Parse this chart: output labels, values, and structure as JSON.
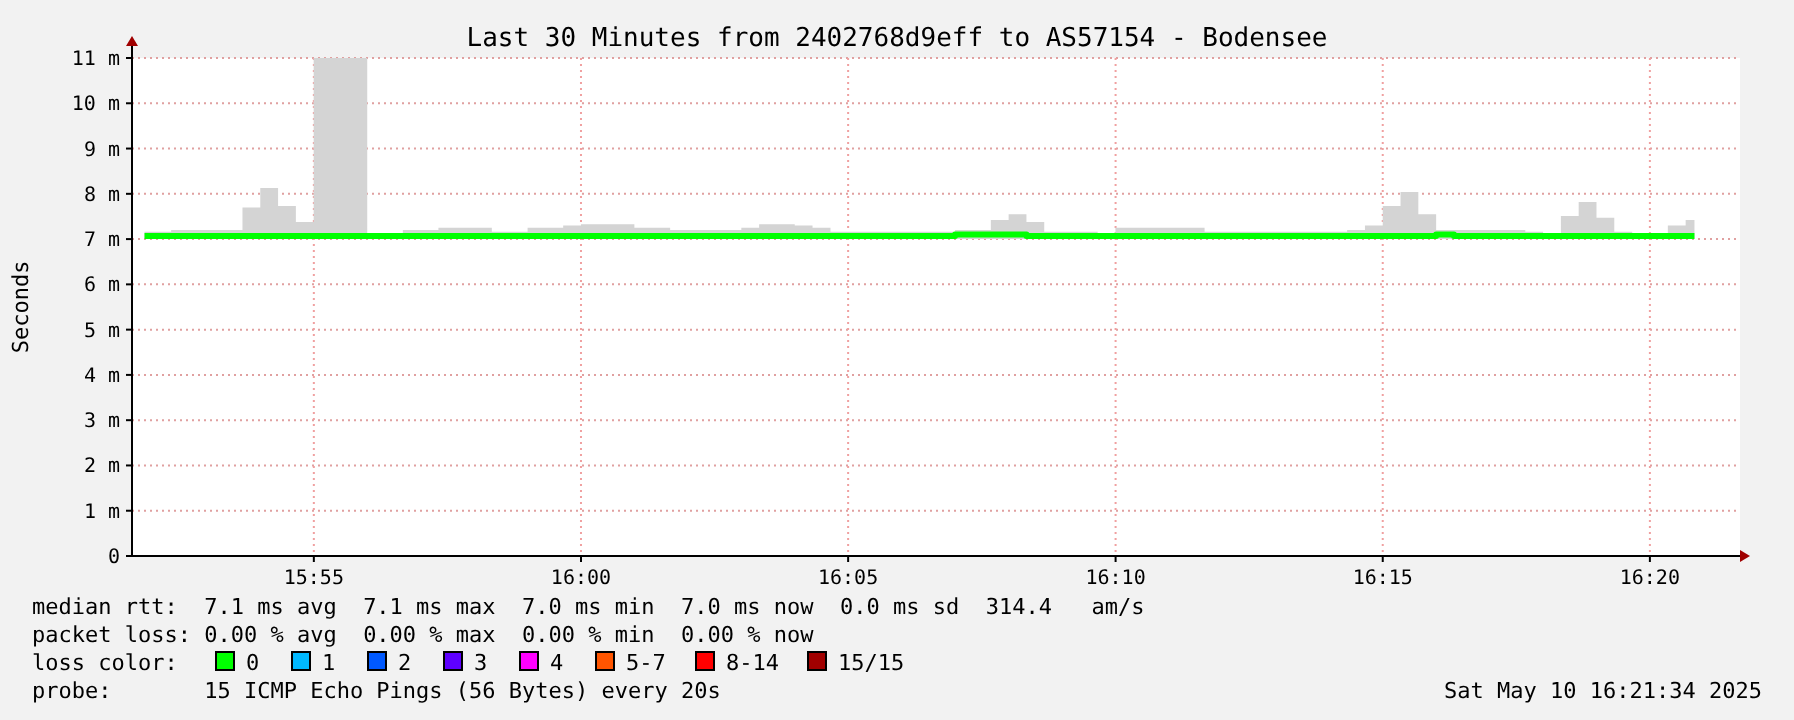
{
  "chart_data": {
    "type": "step",
    "title": "Last 30 Minutes from 2402768d9eff to AS57154 - Bodensee",
    "ylabel": "Seconds",
    "xlim": [
      15.86,
      16.3614
    ],
    "xticks": [
      {
        "value": 15.9167,
        "label": "15:55"
      },
      {
        "value": 16,
        "label": "16:00"
      },
      {
        "value": 16.0833,
        "label": "16:05"
      },
      {
        "value": 16.1667,
        "label": "16:10"
      },
      {
        "value": 16.25,
        "label": "16:15"
      },
      {
        "value": 16.3333,
        "label": "16:20"
      }
    ],
    "ylim": [
      0,
      11
    ],
    "yticks": [
      {
        "value": 0,
        "label": "0"
      },
      {
        "value": 1,
        "label": "1 m"
      },
      {
        "value": 2,
        "label": "2 m"
      },
      {
        "value": 3,
        "label": "3 m"
      },
      {
        "value": 4,
        "label": "4 m"
      },
      {
        "value": 5,
        "label": "5 m"
      },
      {
        "value": 6,
        "label": "6 m"
      },
      {
        "value": 7,
        "label": "7 m"
      },
      {
        "value": 8,
        "label": "8 m"
      },
      {
        "value": 9,
        "label": "9 m"
      },
      {
        "value": 10,
        "label": "10 m"
      },
      {
        "value": 11,
        "label": "11 m"
      }
    ],
    "grid": true,
    "x": [
      15.8639,
      15.8694,
      15.875,
      15.8806,
      15.8861,
      15.8917,
      15.8972,
      15.9028,
      15.9083,
      15.9139,
      15.9194,
      15.925,
      15.9306,
      15.9361,
      15.9417,
      15.9472,
      15.9528,
      15.9583,
      15.9639,
      15.9694,
      15.975,
      15.9806,
      15.9861,
      15.9917,
      15.9972,
      16.0028,
      16.0083,
      16.0139,
      16.0194,
      16.025,
      16.0306,
      16.0361,
      16.0417,
      16.0472,
      16.0528,
      16.0583,
      16.0639,
      16.0694,
      16.075,
      16.0806,
      16.0861,
      16.0917,
      16.0972,
      16.1028,
      16.1083,
      16.1139,
      16.1194,
      16.125,
      16.1306,
      16.1361,
      16.1417,
      16.1472,
      16.1528,
      16.1583,
      16.1639,
      16.1694,
      16.175,
      16.1806,
      16.1861,
      16.1917,
      16.1972,
      16.2028,
      16.2083,
      16.2139,
      16.2194,
      16.225,
      16.2306,
      16.2361,
      16.2417,
      16.2472,
      16.2528,
      16.2583,
      16.2639,
      16.2694,
      16.275,
      16.2806,
      16.2861,
      16.2917,
      16.2972,
      16.3028,
      16.3083,
      16.3139,
      16.3194,
      16.325,
      16.3306,
      16.3361,
      16.3417,
      16.3472
    ],
    "series": [
      {
        "color": "#00ff00",
        "values": [
          7.07,
          7.07,
          7.07,
          7.07,
          7.07,
          7.07,
          7.07,
          7.07,
          7.07,
          7.07,
          7.07,
          7.07,
          7.07,
          7.07,
          7.07,
          7.07,
          7.07,
          7.07,
          7.07,
          7.07,
          7.07,
          7.07,
          7.07,
          7.07,
          7.07,
          7.07,
          7.07,
          7.07,
          7.07,
          7.07,
          7.07,
          7.07,
          7.07,
          7.07,
          7.07,
          7.07,
          7.07,
          7.07,
          7.07,
          7.07,
          7.07,
          7.07,
          7.07,
          7.07,
          7.07,
          7.07,
          7.1,
          7.1,
          7.1,
          7.1,
          7.07,
          7.07,
          7.07,
          7.07,
          7.07,
          7.07,
          7.07,
          7.07,
          7.07,
          7.07,
          7.07,
          7.07,
          7.07,
          7.07,
          7.07,
          7.07,
          7.07,
          7.07,
          7.07,
          7.07,
          7.07,
          7.07,
          7.07,
          7.1,
          7.07,
          7.07,
          7.07,
          7.07,
          7.07,
          7.07,
          7.07,
          7.07,
          7.07,
          7.07,
          7.07,
          7.07,
          7.07,
          7.07
        ],
        "lower": [
          7,
          7,
          7,
          7,
          7,
          7,
          7,
          7,
          7,
          7,
          7,
          7,
          7,
          7,
          7,
          7,
          7,
          7,
          7,
          7,
          7,
          7,
          7,
          7,
          7,
          7,
          7,
          7,
          7,
          7,
          7,
          7,
          7,
          7,
          7,
          7,
          7,
          7,
          7,
          7,
          7,
          7,
          7,
          7,
          7,
          7,
          7,
          7,
          7,
          7,
          7,
          7,
          7,
          7,
          7,
          7,
          7,
          7,
          7,
          7,
          7,
          7,
          7,
          7,
          7,
          7,
          7,
          7,
          7,
          7,
          7,
          7,
          7,
          7,
          7,
          7,
          7,
          7,
          7,
          7,
          7,
          7,
          7,
          7,
          7,
          7,
          7,
          7
        ],
        "upper": [
          7.16,
          7.16,
          7.2,
          7.2,
          7.2,
          7.2,
          7.7,
          8.13,
          7.73,
          7.38,
          11,
          11,
          11,
          7.07,
          7.07,
          7.2,
          7.2,
          7.25,
          7.25,
          7.25,
          7.16,
          7.16,
          7.25,
          7.25,
          7.3,
          7.33,
          7.33,
          7.33,
          7.25,
          7.25,
          7.2,
          7.2,
          7.2,
          7.2,
          7.25,
          7.33,
          7.33,
          7.3,
          7.25,
          7.16,
          7.16,
          7.16,
          7.16,
          7.16,
          7.16,
          7.16,
          7.2,
          7.2,
          7.42,
          7.55,
          7.38,
          7.16,
          7.16,
          7.16,
          7.1,
          7.25,
          7.25,
          7.25,
          7.25,
          7.25,
          7.16,
          7.16,
          7.16,
          7.16,
          7.16,
          7.16,
          7.16,
          7.16,
          7.2,
          7.3,
          7.73,
          8.04,
          7.55,
          7.2,
          7.2,
          7.2,
          7.2,
          7.2,
          7.16,
          7.07,
          7.51,
          7.82,
          7.47,
          7.16,
          7.1,
          7.1,
          7.3,
          7.42
        ]
      }
    ],
    "annotations": [
      "median rtt:  7.1 ms avg  7.1 ms max  7.0 ms min  7.0 ms now  0.0 ms sd  314.4   am/s",
      "packet loss: 0.00 % avg  0.00 % max  0.00 % min  0.00 % now",
      "loss color:",
      "0",
      "1",
      "2",
      "3",
      "4",
      "5-7",
      "8-14",
      "15/15",
      "probe:       15 ICMP Echo Pings (56 Bytes) every 20s",
      "Sat May 10 16:21:34 2025"
    ]
  }
}
